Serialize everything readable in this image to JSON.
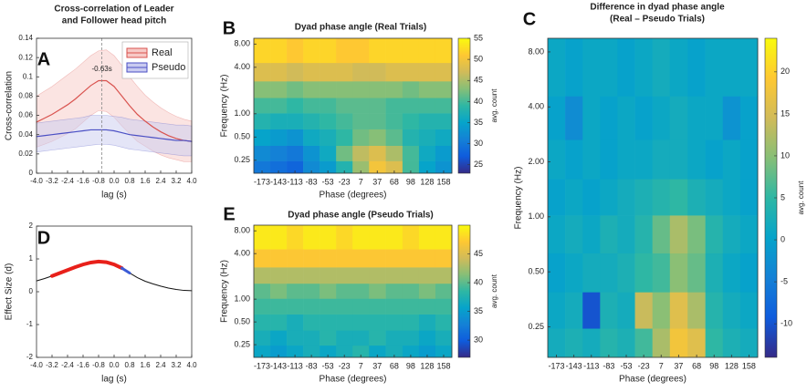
{
  "chart_data": [
    {
      "type": "line",
      "panel_label": "A",
      "title": [
        "Cross-correlation of Leader",
        "and Follower head pitch"
      ],
      "x_label": "lag (s)",
      "y_label": "Cross-correlation",
      "x": [
        -4,
        -3.6,
        -3.2,
        -2.8,
        -2.4,
        -2,
        -1.6,
        -1.2,
        -0.8,
        -0.4,
        0,
        0.4,
        0.8,
        1.2,
        1.6,
        2,
        2.4,
        2.8,
        3.2,
        3.6,
        4
      ],
      "series": [
        {
          "name": "Real",
          "color": "#d9534f",
          "band_color": "#f7c9c6",
          "values": [
            0.053,
            0.057,
            0.061,
            0.066,
            0.071,
            0.077,
            0.084,
            0.091,
            0.096,
            0.096,
            0.09,
            0.08,
            0.07,
            0.061,
            0.054,
            0.048,
            0.043,
            0.039,
            0.036,
            0.034,
            0.033
          ],
          "upper": [
            0.08,
            0.085,
            0.09,
            0.096,
            0.102,
            0.108,
            0.115,
            0.122,
            0.127,
            0.128,
            0.122,
            0.112,
            0.1,
            0.09,
            0.081,
            0.074,
            0.068,
            0.063,
            0.059,
            0.056,
            0.054
          ],
          "lower": [
            0.027,
            0.03,
            0.033,
            0.037,
            0.041,
            0.046,
            0.053,
            0.06,
            0.065,
            0.064,
            0.058,
            0.049,
            0.041,
            0.033,
            0.028,
            0.023,
            0.019,
            0.016,
            0.014,
            0.012,
            0.012
          ]
        },
        {
          "name": "Pseudo",
          "color": "#4a4fc4",
          "band_color": "#c9cbf0",
          "values": [
            0.038,
            0.039,
            0.04,
            0.041,
            0.042,
            0.043,
            0.044,
            0.045,
            0.045,
            0.045,
            0.044,
            0.042,
            0.04,
            0.039,
            0.038,
            0.037,
            0.036,
            0.035,
            0.034,
            0.034,
            0.033
          ],
          "upper": [
            0.052,
            0.053,
            0.054,
            0.055,
            0.056,
            0.057,
            0.058,
            0.06,
            0.06,
            0.06,
            0.059,
            0.058,
            0.056,
            0.055,
            0.054,
            0.053,
            0.052,
            0.051,
            0.05,
            0.05,
            0.049
          ],
          "lower": [
            0.022,
            0.023,
            0.024,
            0.025,
            0.026,
            0.027,
            0.028,
            0.029,
            0.03,
            0.03,
            0.029,
            0.027,
            0.025,
            0.024,
            0.023,
            0.022,
            0.021,
            0.02,
            0.019,
            0.018,
            0.018
          ]
        }
      ],
      "vline": -0.63,
      "annotation": "-0.63s",
      "legend": "upper right",
      "xlim": [
        -4,
        4
      ],
      "ylim": [
        0,
        0.14
      ],
      "xticks": [
        {
          "value": -4,
          "label": "-4.0"
        },
        -3.2,
        -2.4,
        -1.6,
        -0.8,
        {
          "value": 0,
          "label": "0.0"
        },
        0.8,
        1.6,
        2.4,
        3.2,
        {
          "value": 4,
          "label": "4.0"
        }
      ],
      "yticks": [
        0,
        0.02,
        0.04,
        0.06,
        0.08,
        0.1,
        0.12,
        0.14
      ]
    },
    {
      "type": "heatmap",
      "panel_label": "B",
      "title": "Dyad phase angle (Real Trials)",
      "x_label": "Phase (degrees)",
      "y_label": "Frequency (Hz)",
      "colorbar_label": "avg. count",
      "log_y": true,
      "colormap": [
        "#352a87",
        "#0f5cdd",
        "#1481d6",
        "#06a4ca",
        "#2eb7a4",
        "#87bf77",
        "#d1bb59",
        "#fec832",
        "#f9fb0e"
      ],
      "x": [
        -173,
        -143,
        -113,
        -83,
        -53,
        -23,
        7,
        37,
        68,
        98,
        128,
        158
      ],
      "y": [
        0.2,
        0.3,
        0.5,
        0.8,
        1.3,
        2,
        3.5,
        6
      ],
      "values": [
        [
          30,
          29,
          28,
          32,
          34,
          38,
          44,
          50,
          48,
          40,
          35,
          33
        ],
        [
          32,
          31,
          30,
          33,
          36,
          42,
          46,
          48,
          45,
          40,
          36,
          34
        ],
        [
          35,
          34,
          33,
          36,
          37,
          39,
          42,
          43,
          41,
          38,
          37,
          36
        ],
        [
          38,
          37,
          37,
          38,
          39,
          40,
          41,
          41,
          40,
          39,
          38,
          38
        ],
        [
          40,
          40,
          39,
          40,
          40,
          41,
          41,
          41,
          40,
          40,
          40,
          40
        ],
        [
          43,
          43,
          42,
          43,
          43,
          43,
          43,
          43,
          43,
          42,
          43,
          43
        ],
        [
          48,
          48,
          47,
          48,
          48,
          48,
          47,
          47,
          48,
          48,
          48,
          48
        ],
        [
          52,
          52,
          51,
          52,
          52,
          51,
          51,
          52,
          52,
          52,
          52,
          52
        ]
      ],
      "xlim": [
        -188,
        173
      ],
      "ylim": [
        0.17,
        9.5
      ],
      "zlim": [
        23,
        55
      ],
      "xticks": [
        -173,
        -143,
        -113,
        -83,
        -53,
        -23,
        7,
        37,
        68,
        98,
        128,
        158
      ],
      "yticks": [
        0.25,
        {
          "value": 0.5,
          "label": "0.50"
        },
        {
          "value": 1,
          "label": "1.00"
        },
        {
          "value": 4,
          "label": "4.00"
        },
        {
          "value": 8,
          "label": "8.00"
        }
      ],
      "zticks": [
        25,
        30,
        35,
        40,
        45,
        50,
        55
      ]
    },
    {
      "type": "heatmap",
      "panel_label": "C",
      "title": [
        "Difference in dyad phase angle",
        "(Real – Pseudo Trials)"
      ],
      "x_label": "Phase (degrees)",
      "y_label": "Frequency (Hz)",
      "colorbar_label": "avg. count",
      "log_y": true,
      "colormap": [
        "#352a87",
        "#0f5cdd",
        "#1481d6",
        "#06a4ca",
        "#2eb7a4",
        "#87bf77",
        "#d1bb59",
        "#fec832",
        "#f9fb0e"
      ],
      "x": [
        -173,
        -143,
        -113,
        -83,
        -53,
        -23,
        7,
        37,
        68,
        98,
        128,
        158
      ],
      "y": [
        0.2,
        0.3,
        0.5,
        0.8,
        1.3,
        2,
        3.5,
        6
      ],
      "values": [
        [
          2,
          3,
          2,
          4,
          3,
          6,
          12,
          18,
          16,
          5,
          3,
          2
        ],
        [
          1,
          2,
          -10,
          3,
          2,
          14,
          10,
          16,
          12,
          4,
          2,
          1
        ],
        [
          0,
          1,
          2,
          2,
          3,
          5,
          6,
          10,
          8,
          3,
          1,
          0
        ],
        [
          1,
          2,
          1,
          3,
          2,
          4,
          8,
          12,
          9,
          4,
          2,
          1
        ],
        [
          0,
          1,
          0,
          1,
          2,
          3,
          4,
          5,
          3,
          2,
          1,
          0
        ],
        [
          1,
          0,
          1,
          0,
          1,
          1,
          2,
          2,
          1,
          0,
          1,
          0
        ],
        [
          0,
          -3,
          1,
          0,
          1,
          0,
          1,
          2,
          1,
          1,
          -2,
          0
        ],
        [
          1,
          0,
          1,
          1,
          0,
          1,
          2,
          1,
          0,
          1,
          1,
          1
        ]
      ],
      "xlim": [
        -188,
        173
      ],
      "ylim": [
        0.17,
        9.5
      ],
      "zlim": [
        -14,
        24
      ],
      "xticks": [
        -173,
        -143,
        -113,
        -83,
        -53,
        -23,
        7,
        37,
        68,
        98,
        128,
        158
      ],
      "yticks": [
        0.25,
        {
          "value": 0.5,
          "label": "0.50"
        },
        {
          "value": 1,
          "label": "1.00"
        },
        {
          "value": 2,
          "label": "2.00"
        },
        {
          "value": 4,
          "label": "4.00"
        },
        {
          "value": 8,
          "label": "8.00"
        }
      ],
      "zticks": [
        -10,
        -5,
        0,
        5,
        10,
        15,
        20
      ]
    },
    {
      "type": "line",
      "panel_label": "D",
      "x_label": "lag (s)",
      "y_label": "Effect Size (d)",
      "x": [
        -4,
        -3.6,
        -3.2,
        -2.8,
        -2.4,
        -2,
        -1.6,
        -1.2,
        -0.8,
        -0.4,
        0,
        0.4,
        0.8,
        1.2,
        1.6,
        2,
        2.4,
        2.8,
        3.2,
        3.6,
        4
      ],
      "series": [
        {
          "color": "#111111",
          "width": 1,
          "values": [
            0.33,
            0.4,
            0.48,
            0.57,
            0.66,
            0.75,
            0.83,
            0.89,
            0.92,
            0.9,
            0.83,
            0.72,
            0.57,
            0.43,
            0.32,
            0.24,
            0.17,
            0.11,
            0.07,
            0.04,
            0.03
          ]
        },
        {
          "color": "#e8201a",
          "width": 4,
          "values": [
            null,
            null,
            0.48,
            0.57,
            0.66,
            0.75,
            0.83,
            0.89,
            0.92,
            0.9,
            0.83,
            0.72,
            null,
            null,
            null,
            null,
            null,
            null,
            null,
            null,
            null
          ]
        },
        {
          "color": "#3b5bd6",
          "width": 3,
          "values": [
            null,
            null,
            null,
            null,
            null,
            null,
            null,
            null,
            null,
            null,
            null,
            0.72,
            0.57,
            null,
            null,
            null,
            null,
            null,
            null,
            null,
            null
          ]
        }
      ],
      "xlim": [
        -4,
        4
      ],
      "ylim": [
        -2,
        2
      ],
      "xticks": [
        {
          "value": -4,
          "label": "-4.0"
        },
        -3.2,
        -2.4,
        -1.6,
        -0.8,
        {
          "value": 0,
          "label": "0.0"
        },
        0.8,
        1.6,
        2.4,
        3.2,
        {
          "value": 4,
          "label": "4.0"
        }
      ],
      "yticks": [
        -2,
        -1,
        0,
        1,
        2
      ]
    },
    {
      "type": "heatmap",
      "panel_label": "E",
      "title": "Dyad phase angle (Pseudo Trials)",
      "x_label": "Phase (degrees)",
      "y_label": "Frequency (Hz)",
      "colorbar_label": "avg. count",
      "log_y": true,
      "colormap": [
        "#352a87",
        "#0f5cdd",
        "#1481d6",
        "#06a4ca",
        "#2eb7a4",
        "#87bf77",
        "#d1bb59",
        "#fec832",
        "#f9fb0e"
      ],
      "x": [
        -173,
        -143,
        -113,
        -83,
        -53,
        -23,
        7,
        37,
        68,
        98,
        128,
        158
      ],
      "y": [
        0.2,
        0.3,
        0.5,
        0.8,
        1.3,
        2,
        3.5,
        6
      ],
      "values": [
        [
          36,
          35,
          36,
          37,
          36,
          37,
          38,
          36,
          37,
          36,
          35,
          36
        ],
        [
          37,
          36,
          37,
          37,
          38,
          37,
          37,
          38,
          37,
          37,
          36,
          37
        ],
        [
          38,
          38,
          37,
          38,
          38,
          38,
          38,
          38,
          38,
          38,
          37,
          38
        ],
        [
          39,
          39,
          39,
          39,
          39,
          39,
          39,
          39,
          39,
          39,
          39,
          39
        ],
        [
          40,
          41,
          40,
          40,
          41,
          40,
          40,
          41,
          40,
          40,
          41,
          40
        ],
        [
          43,
          43,
          43,
          43,
          43,
          43,
          43,
          43,
          43,
          43,
          43,
          43
        ],
        [
          47,
          47,
          47,
          47,
          47,
          47,
          47,
          47,
          47,
          47,
          47,
          47
        ],
        [
          49,
          49,
          48,
          49,
          49,
          48,
          49,
          49,
          49,
          48,
          49,
          49
        ]
      ],
      "xlim": [
        -188,
        173
      ],
      "ylim": [
        0.17,
        9.5
      ],
      "zlim": [
        27,
        50
      ],
      "xticks": [
        -173,
        -143,
        -113,
        -83,
        -53,
        -23,
        7,
        37,
        68,
        98,
        128,
        158
      ],
      "yticks": [
        0.25,
        {
          "value": 0.5,
          "label": "0.50"
        },
        {
          "value": 1,
          "label": "1.00"
        },
        {
          "value": 4,
          "label": "4.00"
        },
        {
          "value": 8,
          "label": "8.00"
        }
      ],
      "zticks": [
        30,
        35,
        40,
        45
      ]
    }
  ]
}
